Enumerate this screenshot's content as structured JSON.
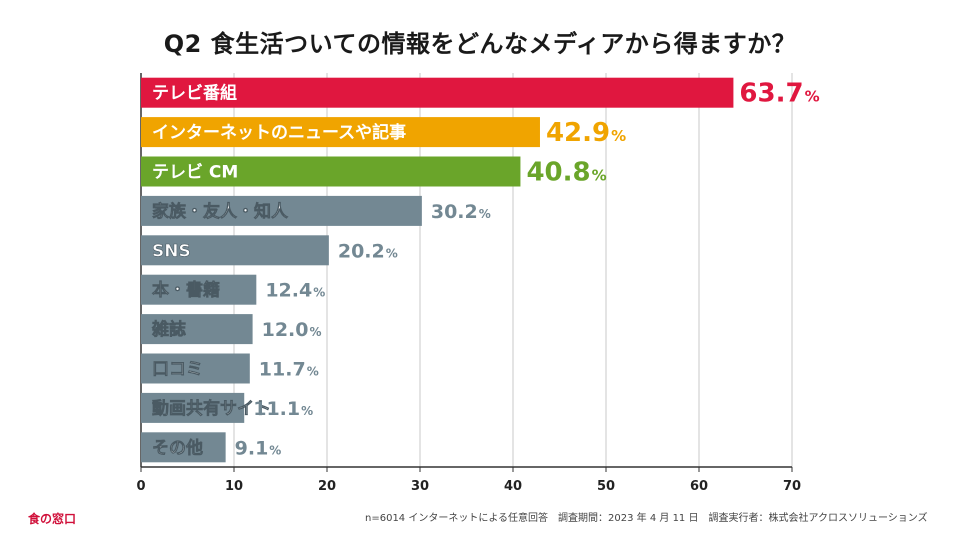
{
  "chart_data": {
    "type": "bar",
    "orientation": "horizontal",
    "title": "Q2 食生活ついての情報をどんなメディアから得ますか？",
    "categories": [
      "テレビ番組",
      "インターネットのニュースや記事",
      "テレビ CM",
      "家族・友人・知人",
      "SNS",
      "本・書籍",
      "雑誌",
      "口コミ",
      "動画共有サイト",
      "その他"
    ],
    "values": [
      63.7,
      42.9,
      40.8,
      30.2,
      20.2,
      12.4,
      12.0,
      11.7,
      11.1,
      9.1
    ],
    "value_labels": [
      "63.7",
      "42.9",
      "40.8",
      "30.2",
      "20.2",
      "12.4",
      "12.0",
      "11.7",
      "11.1",
      "9.1"
    ],
    "value_unit": "%",
    "colors": [
      "#e0173f",
      "#f0a400",
      "#6aa52a",
      "#738893",
      "#738893",
      "#738893",
      "#738893",
      "#738893",
      "#738893",
      "#738893"
    ],
    "xlim": [
      0,
      70
    ],
    "xticks": [
      0,
      10,
      20,
      30,
      40,
      50,
      60,
      70
    ],
    "xlabel": "",
    "ylabel": "",
    "grid": true
  },
  "footer": {
    "brand": "食の窓口",
    "note": "n=6014 インターネットによる任意回答　調査期間：2023 年 4 月 11 日　調査実行者：株式会社アクロスソリューションズ"
  }
}
